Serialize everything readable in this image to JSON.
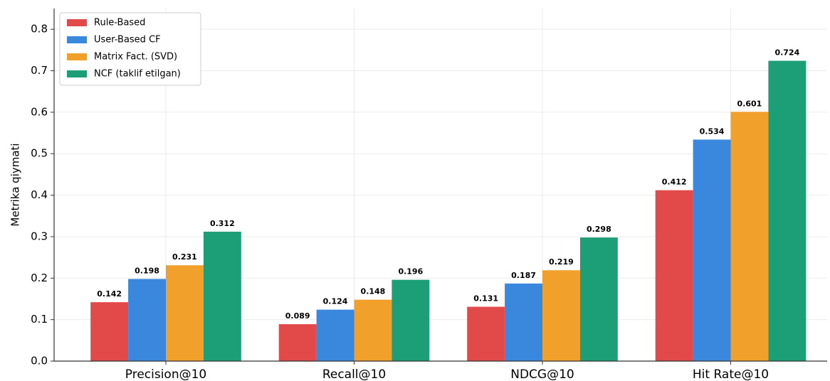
{
  "chart_data": {
    "type": "bar",
    "ylabel": "Metrika qiymati",
    "categories": [
      "Precision@10",
      "Recall@10",
      "NDCG@10",
      "Hit Rate@10"
    ],
    "series": [
      {
        "name": "Rule-Based",
        "color": "#e24a4a",
        "values": [
          0.142,
          0.089,
          0.131,
          0.412
        ]
      },
      {
        "name": "User-Based CF",
        "color": "#3a88dd",
        "values": [
          0.198,
          0.124,
          0.187,
          0.534
        ]
      },
      {
        "name": "Matrix Fact. (SVD)",
        "color": "#f0a02b",
        "values": [
          0.231,
          0.148,
          0.219,
          0.601
        ]
      },
      {
        "name": "NCF (taklif etilgan)",
        "color": "#1c9e76",
        "values": [
          0.312,
          0.196,
          0.298,
          0.724
        ]
      }
    ],
    "ylim": [
      0,
      0.85
    ],
    "yticks": [
      {
        "value": 0,
        "label": "0.0"
      },
      0.1,
      0.2,
      0.3,
      0.4,
      0.5,
      0.6,
      0.7,
      0.8
    ],
    "grid": true,
    "legend": "upper left"
  }
}
